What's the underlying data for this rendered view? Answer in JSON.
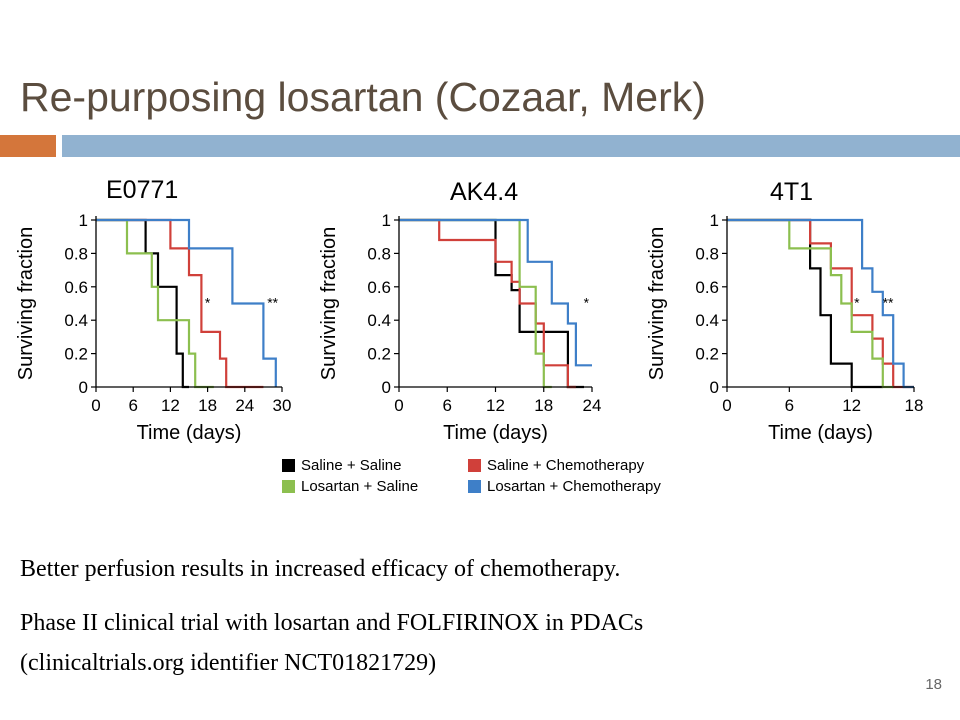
{
  "slide": {
    "title": "Re-purposing losartan (Cozaar, Merk)",
    "body_lines": [
      "Better perfusion results in increased efficacy of chemotherapy.",
      "Phase II clinical trial with losartan and FOLFIRINOX in PDACs",
      "(clinicaltrials.org identifier NCT01821729)"
    ],
    "page_number": "18",
    "accent_colors": {
      "orange": "#d4763b",
      "blue": "#91b2d0",
      "title": "#5b4d3f"
    }
  },
  "legend": [
    {
      "label": "Saline + Saline",
      "color": "#000000"
    },
    {
      "label": "Saline + Chemotherapy",
      "color": "#d0403a"
    },
    {
      "label": "Losartan + Saline",
      "color": "#8cbf4f"
    },
    {
      "label": "Losartan + Chemotherapy",
      "color": "#3e7fc8"
    }
  ],
  "chart_data": [
    {
      "type": "line",
      "title": "E0771",
      "xlabel": "Time (days)",
      "ylabel": "Surviving fraction",
      "xlim": [
        0,
        30
      ],
      "ylim": [
        0,
        1
      ],
      "xticks": [
        0,
        6,
        12,
        18,
        24,
        30
      ],
      "yticks": [
        0,
        0.2,
        0.4,
        0.6,
        0.8,
        1
      ],
      "ytick_labels": [
        "0",
        "0.2",
        "0.4",
        "0.6",
        "0.8",
        "1"
      ],
      "annotations": [
        {
          "text": "*",
          "x": 18,
          "y": 0.5
        },
        {
          "text": "**",
          "x": 28.5,
          "y": 0.5
        }
      ],
      "series": [
        {
          "name": "Saline + Saline",
          "color": "#000000",
          "steps": [
            [
              0,
              1
            ],
            [
              8,
              1
            ],
            [
              8,
              0.8
            ],
            [
              10,
              0.8
            ],
            [
              10,
              0.6
            ],
            [
              13,
              0.6
            ],
            [
              13,
              0.2
            ],
            [
              14,
              0.2
            ],
            [
              14,
              0
            ],
            [
              15,
              0
            ]
          ]
        },
        {
          "name": "Saline + Chemotherapy",
          "color": "#d0403a",
          "steps": [
            [
              0,
              1
            ],
            [
              12,
              1
            ],
            [
              12,
              0.83
            ],
            [
              15,
              0.83
            ],
            [
              15,
              0.67
            ],
            [
              17,
              0.67
            ],
            [
              17,
              0.33
            ],
            [
              20,
              0.33
            ],
            [
              20,
              0.17
            ],
            [
              21,
              0.17
            ],
            [
              21,
              0
            ],
            [
              27,
              0
            ]
          ]
        },
        {
          "name": "Losartan + Saline",
          "color": "#8cbf4f",
          "steps": [
            [
              0,
              1
            ],
            [
              5,
              1
            ],
            [
              5,
              0.8
            ],
            [
              9,
              0.8
            ],
            [
              9,
              0.6
            ],
            [
              10,
              0.6
            ],
            [
              10,
              0.4
            ],
            [
              15,
              0.4
            ],
            [
              15,
              0.2
            ],
            [
              16,
              0.2
            ],
            [
              16,
              0
            ],
            [
              19,
              0
            ]
          ]
        },
        {
          "name": "Losartan + Chemotherapy",
          "color": "#3e7fc8",
          "steps": [
            [
              0,
              1
            ],
            [
              15,
              1
            ],
            [
              15,
              0.83
            ],
            [
              22,
              0.83
            ],
            [
              22,
              0.5
            ],
            [
              27,
              0.5
            ],
            [
              27,
              0.17
            ],
            [
              29,
              0.17
            ],
            [
              29,
              0
            ]
          ]
        }
      ]
    },
    {
      "type": "line",
      "title": "AK4.4",
      "xlabel": "Time (days)",
      "ylabel": "Surviving fraction",
      "xlim": [
        0,
        24
      ],
      "ylim": [
        0,
        1
      ],
      "xticks": [
        0,
        6,
        12,
        18,
        24
      ],
      "yticks": [
        0,
        0.2,
        0.4,
        0.6,
        0.8,
        1
      ],
      "ytick_labels": [
        "0",
        "0.2",
        "0.4",
        "0.6",
        "0.8",
        "1"
      ],
      "annotations": [
        {
          "text": "*",
          "x": 23.3,
          "y": 0.5
        }
      ],
      "series": [
        {
          "name": "Saline + Saline",
          "color": "#000000",
          "steps": [
            [
              0,
              1
            ],
            [
              12,
              1
            ],
            [
              12,
              0.67
            ],
            [
              14,
              0.67
            ],
            [
              14,
              0.58
            ],
            [
              15,
              0.58
            ],
            [
              15,
              0.33
            ],
            [
              16,
              0.33
            ],
            [
              16,
              0.33
            ],
            [
              21,
              0.33
            ],
            [
              21,
              0
            ],
            [
              23,
              0
            ]
          ]
        },
        {
          "name": "Saline + Chemotherapy",
          "color": "#d0403a",
          "steps": [
            [
              0,
              1
            ],
            [
              5,
              1
            ],
            [
              5,
              0.88
            ],
            [
              12,
              0.88
            ],
            [
              12,
              0.75
            ],
            [
              14,
              0.75
            ],
            [
              14,
              0.63
            ],
            [
              15,
              0.63
            ],
            [
              15,
              0.5
            ],
            [
              17,
              0.5
            ],
            [
              17,
              0.38
            ],
            [
              18,
              0.38
            ],
            [
              18,
              0.13
            ],
            [
              21,
              0.13
            ],
            [
              21,
              0
            ],
            [
              22,
              0
            ]
          ]
        },
        {
          "name": "Losartan + Saline",
          "color": "#8cbf4f",
          "steps": [
            [
              0,
              1
            ],
            [
              15,
              1
            ],
            [
              15,
              0.6
            ],
            [
              17,
              0.6
            ],
            [
              17,
              0.2
            ],
            [
              18,
              0.2
            ],
            [
              18,
              0
            ],
            [
              19,
              0
            ]
          ]
        },
        {
          "name": "Losartan + Chemotherapy",
          "color": "#3e7fc8",
          "steps": [
            [
              0,
              1
            ],
            [
              16,
              1
            ],
            [
              16,
              0.75
            ],
            [
              19,
              0.75
            ],
            [
              19,
              0.5
            ],
            [
              21,
              0.5
            ],
            [
              21,
              0.38
            ],
            [
              22,
              0.38
            ],
            [
              22,
              0.13
            ],
            [
              24,
              0.13
            ]
          ]
        }
      ]
    },
    {
      "type": "line",
      "title": "4T1",
      "xlabel": "Time (days)",
      "ylabel": "Surviving fraction",
      "xlim": [
        0,
        18
      ],
      "ylim": [
        0,
        1
      ],
      "xticks": [
        0,
        6,
        12,
        18
      ],
      "yticks": [
        0,
        0.2,
        0.4,
        0.6,
        0.8,
        1
      ],
      "ytick_labels": [
        "0",
        "0.2",
        "0.4",
        "0.6",
        "0.8",
        "1"
      ],
      "annotations": [
        {
          "text": "*",
          "x": 12.5,
          "y": 0.5
        },
        {
          "text": "**",
          "x": 15.5,
          "y": 0.5
        }
      ],
      "series": [
        {
          "name": "Saline + Saline",
          "color": "#000000",
          "steps": [
            [
              0,
              1
            ],
            [
              8,
              1
            ],
            [
              8,
              0.71
            ],
            [
              9,
              0.71
            ],
            [
              9,
              0.43
            ],
            [
              10,
              0.43
            ],
            [
              10,
              0.14
            ],
            [
              12,
              0.14
            ],
            [
              12,
              0
            ],
            [
              15,
              0
            ]
          ]
        },
        {
          "name": "Saline + Chemotherapy",
          "color": "#d0403a",
          "steps": [
            [
              0,
              1
            ],
            [
              8,
              1
            ],
            [
              8,
              0.86
            ],
            [
              10,
              0.86
            ],
            [
              10,
              0.71
            ],
            [
              12,
              0.71
            ],
            [
              12,
              0.43
            ],
            [
              14,
              0.43
            ],
            [
              14,
              0.29
            ],
            [
              15,
              0.29
            ],
            [
              15,
              0.14
            ],
            [
              16,
              0.14
            ],
            [
              16,
              0
            ],
            [
              18,
              0
            ]
          ]
        },
        {
          "name": "Losartan + Saline",
          "color": "#8cbf4f",
          "steps": [
            [
              0,
              1
            ],
            [
              6,
              1
            ],
            [
              6,
              0.83
            ],
            [
              10,
              0.83
            ],
            [
              10,
              0.67
            ],
            [
              11,
              0.67
            ],
            [
              11,
              0.5
            ],
            [
              12,
              0.5
            ],
            [
              12,
              0.33
            ],
            [
              14,
              0.33
            ],
            [
              14,
              0.17
            ],
            [
              15,
              0.17
            ],
            [
              15,
              0
            ],
            [
              16,
              0
            ]
          ]
        },
        {
          "name": "Losartan + Chemotherapy",
          "color": "#3e7fc8",
          "steps": [
            [
              0,
              1
            ],
            [
              13,
              1
            ],
            [
              13,
              0.71
            ],
            [
              14,
              0.71
            ],
            [
              14,
              0.57
            ],
            [
              15,
              0.57
            ],
            [
              15,
              0.43
            ],
            [
              16,
              0.43
            ],
            [
              16,
              0.14
            ],
            [
              17,
              0.14
            ],
            [
              17,
              0
            ],
            [
              18,
              0
            ]
          ]
        }
      ]
    }
  ]
}
